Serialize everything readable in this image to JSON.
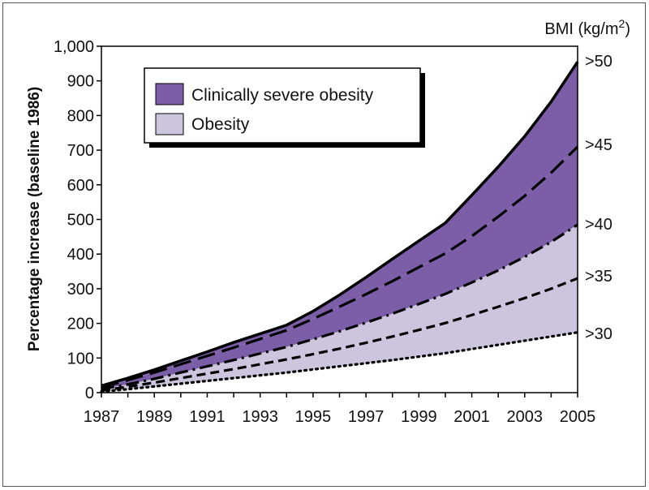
{
  "chart_data": {
    "type": "area",
    "title": "",
    "xlabel": "",
    "ylabel": "Percentage increase (baseline 1986)",
    "right_axis_title": "BMI (kg/m2)",
    "x_ticks": [
      "1987",
      "1989",
      "1991",
      "1993",
      "1995",
      "1997",
      "1999",
      "2001",
      "2003",
      "2005"
    ],
    "y_ticks": [
      "0",
      "100",
      "200",
      "300",
      "400",
      "500",
      "600",
      "700",
      "800",
      "900",
      "1,000"
    ],
    "xlim": [
      1987,
      2005
    ],
    "ylim": [
      0,
      1000
    ],
    "grid": false,
    "legend": {
      "placement": "top-left",
      "entries": [
        {
          "label": "Clinically severe obesity",
          "color": "#7b5ea7"
        },
        {
          "label": "Obesity",
          "color": "#cdc4de"
        }
      ]
    },
    "x": [
      1987,
      1988,
      1989,
      1990,
      1991,
      1992,
      1993,
      1994,
      1995,
      1996,
      1997,
      1998,
      1999,
      2000,
      2001,
      2002,
      2003,
      2004,
      2005
    ],
    "series": [
      {
        "name": ">50",
        "line_style": "solid",
        "values": [
          20,
          42,
          66,
          92,
          118,
          145,
          170,
          195,
          235,
          282,
          333,
          386,
          438,
          490,
          570,
          652,
          740,
          840,
          955
        ]
      },
      {
        "name": ">45",
        "line_style": "long-dash",
        "values": [
          15,
          36,
          58,
          82,
          106,
          130,
          155,
          180,
          213,
          248,
          284,
          322,
          362,
          402,
          452,
          508,
          568,
          635,
          710
        ]
      },
      {
        "name": ">40",
        "line_style": "dash-dot",
        "values": [
          10,
          24,
          40,
          58,
          76,
          94,
          113,
          132,
          154,
          177,
          202,
          228,
          256,
          285,
          318,
          353,
          392,
          435,
          485
        ]
      },
      {
        "name": ">35",
        "line_style": "short-dash",
        "values": [
          6,
          17,
          29,
          42,
          55,
          68,
          82,
          96,
          111,
          127,
          144,
          162,
          181,
          201,
          224,
          248,
          273,
          300,
          330
        ]
      },
      {
        "name": ">30",
        "line_style": "dotted",
        "values": [
          3,
          10,
          18,
          26,
          34,
          42,
          50,
          58,
          67,
          76,
          85,
          94,
          104,
          114,
          126,
          138,
          150,
          162,
          174
        ]
      }
    ],
    "fills": [
      {
        "between": [
          ">45",
          ">50"
        ],
        "color": "#7b5ea7"
      },
      {
        "between": [
          ">40",
          ">45"
        ],
        "color": "#7b5ea7"
      },
      {
        "between": [
          ">35",
          ">40"
        ],
        "color": "#cdc4de"
      },
      {
        "between": [
          ">30",
          ">35"
        ],
        "color": "#cdc4de"
      }
    ]
  }
}
